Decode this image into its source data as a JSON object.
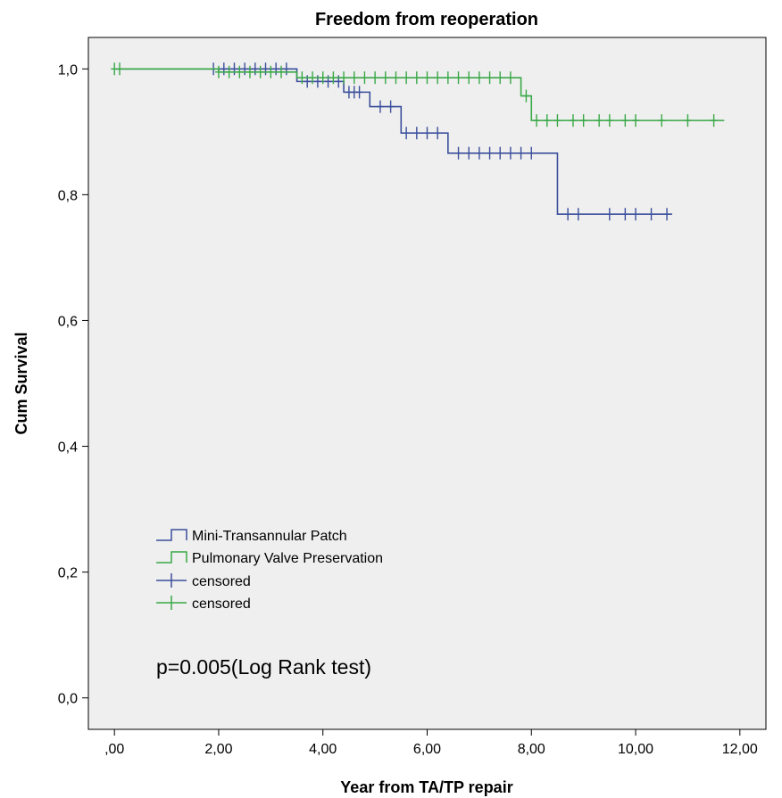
{
  "chart_data": {
    "type": "line",
    "title": "Freedom from reoperation",
    "xlabel": "Year from TA/TP repair",
    "ylabel": "Cum Survival",
    "xlim": [
      -0.5,
      12.5
    ],
    "ylim": [
      -0.05,
      1.05
    ],
    "x_ticks": [
      0,
      2,
      4,
      6,
      8,
      10,
      12
    ],
    "x_tick_labels": [
      ",00",
      "2,00",
      "4,00",
      "6,00",
      "8,00",
      "10,00",
      "12,00"
    ],
    "y_ticks": [
      0,
      0.2,
      0.4,
      0.6,
      0.8,
      1.0
    ],
    "y_tick_labels": [
      "0,0",
      "0,2",
      "0,4",
      "0,6",
      "0,8",
      "1,0"
    ],
    "grid": false,
    "legend_position": "lower-left",
    "annotation": "p=0.005(Log Rank test)",
    "series": [
      {
        "name": "Mini-Transannular Patch",
        "color": "#3b4f9c",
        "steps": [
          [
            0.0,
            1.0
          ],
          [
            3.5,
            0.98
          ],
          [
            4.4,
            0.963
          ],
          [
            4.9,
            0.94
          ],
          [
            5.5,
            0.898
          ],
          [
            6.4,
            0.866
          ],
          [
            8.5,
            0.769
          ],
          [
            10.7,
            0.769
          ]
        ],
        "censored": [
          [
            1.9,
            1.0
          ],
          [
            2.1,
            1.0
          ],
          [
            2.3,
            1.0
          ],
          [
            2.5,
            1.0
          ],
          [
            2.7,
            1.0
          ],
          [
            2.9,
            1.0
          ],
          [
            3.1,
            1.0
          ],
          [
            3.3,
            1.0
          ],
          [
            3.7,
            0.98
          ],
          [
            3.9,
            0.98
          ],
          [
            4.1,
            0.98
          ],
          [
            4.3,
            0.98
          ],
          [
            4.5,
            0.963
          ],
          [
            4.6,
            0.963
          ],
          [
            4.7,
            0.963
          ],
          [
            5.1,
            0.94
          ],
          [
            5.3,
            0.94
          ],
          [
            5.6,
            0.898
          ],
          [
            5.8,
            0.898
          ],
          [
            6.0,
            0.898
          ],
          [
            6.2,
            0.898
          ],
          [
            6.6,
            0.866
          ],
          [
            6.8,
            0.866
          ],
          [
            7.0,
            0.866
          ],
          [
            7.2,
            0.866
          ],
          [
            7.4,
            0.866
          ],
          [
            7.6,
            0.866
          ],
          [
            7.8,
            0.866
          ],
          [
            8.0,
            0.866
          ],
          [
            8.7,
            0.769
          ],
          [
            8.9,
            0.769
          ],
          [
            9.5,
            0.769
          ],
          [
            9.8,
            0.769
          ],
          [
            10.0,
            0.769
          ],
          [
            10.3,
            0.769
          ],
          [
            10.6,
            0.769
          ]
        ]
      },
      {
        "name": "Pulmonary Valve Preservation",
        "color": "#39a847",
        "steps": [
          [
            0.0,
            1.0
          ],
          [
            2.0,
            0.995
          ],
          [
            3.5,
            0.986
          ],
          [
            7.8,
            0.957
          ],
          [
            8.0,
            0.918
          ],
          [
            11.7,
            0.918
          ]
        ],
        "censored": [
          [
            0.0,
            1.0
          ],
          [
            0.1,
            1.0
          ],
          [
            2.0,
            0.995
          ],
          [
            2.2,
            0.995
          ],
          [
            2.4,
            0.995
          ],
          [
            2.6,
            0.995
          ],
          [
            2.8,
            0.995
          ],
          [
            3.0,
            0.995
          ],
          [
            3.2,
            0.995
          ],
          [
            3.6,
            0.986
          ],
          [
            3.8,
            0.986
          ],
          [
            4.0,
            0.986
          ],
          [
            4.2,
            0.986
          ],
          [
            4.4,
            0.986
          ],
          [
            4.6,
            0.986
          ],
          [
            4.8,
            0.986
          ],
          [
            5.0,
            0.986
          ],
          [
            5.2,
            0.986
          ],
          [
            5.4,
            0.986
          ],
          [
            5.6,
            0.986
          ],
          [
            5.8,
            0.986
          ],
          [
            6.0,
            0.986
          ],
          [
            6.2,
            0.986
          ],
          [
            6.4,
            0.986
          ],
          [
            6.6,
            0.986
          ],
          [
            6.8,
            0.986
          ],
          [
            7.0,
            0.986
          ],
          [
            7.2,
            0.986
          ],
          [
            7.4,
            0.986
          ],
          [
            7.6,
            0.986
          ],
          [
            7.9,
            0.957
          ],
          [
            8.1,
            0.918
          ],
          [
            8.3,
            0.918
          ],
          [
            8.5,
            0.918
          ],
          [
            8.8,
            0.918
          ],
          [
            9.0,
            0.918
          ],
          [
            9.3,
            0.918
          ],
          [
            9.5,
            0.918
          ],
          [
            9.8,
            0.918
          ],
          [
            10.0,
            0.918
          ],
          [
            10.5,
            0.918
          ],
          [
            11.0,
            0.918
          ],
          [
            11.5,
            0.918
          ]
        ]
      }
    ],
    "legend": [
      {
        "label": "Mini-Transannular Patch",
        "symbol": "step",
        "color": "#3b4f9c"
      },
      {
        "label": "Pulmonary Valve Preservation",
        "symbol": "step",
        "color": "#39a847"
      },
      {
        "label": "censored",
        "symbol": "plus",
        "color": "#3b4f9c"
      },
      {
        "label": "censored",
        "symbol": "plus",
        "color": "#39a847"
      }
    ]
  }
}
